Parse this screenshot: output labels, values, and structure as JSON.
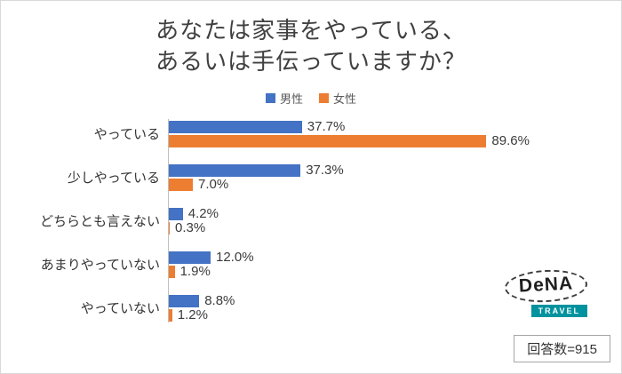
{
  "title": {
    "line1": "あなたは家事をやっている、",
    "line2": "あるいは手伝っていますか？"
  },
  "legend": [
    {
      "label": "男性",
      "color": "#4472C4"
    },
    {
      "label": "女性",
      "color": "#ED7D31"
    }
  ],
  "chart_data": {
    "type": "bar",
    "orientation": "horizontal",
    "title": "あなたは家事をやっている、あるいは手伝っていますか？",
    "categories": [
      "やっている",
      "少しやっている",
      "どちらとも言えない",
      "あまりやっていない",
      "やっていない"
    ],
    "series": [
      {
        "name": "男性",
        "color": "#4472C4",
        "values": [
          37.7,
          37.3,
          4.2,
          12.0,
          8.8
        ]
      },
      {
        "name": "女性",
        "color": "#ED7D31",
        "values": [
          89.6,
          7.0,
          0.3,
          1.9,
          1.2
        ]
      }
    ],
    "value_labels": {
      "male": [
        "37.7%",
        "37.3%",
        "4.2%",
        "12.0%",
        "8.8%"
      ],
      "female": [
        "89.6%",
        "7.0%",
        "0.3%",
        "1.9%",
        "1.2%"
      ]
    },
    "xlim": [
      0,
      100
    ],
    "grid": false,
    "legend_position": "top"
  },
  "footer": {
    "logo_name": "DeNA",
    "logo_sub": "TRAVEL",
    "response_count": "回答数=915"
  }
}
